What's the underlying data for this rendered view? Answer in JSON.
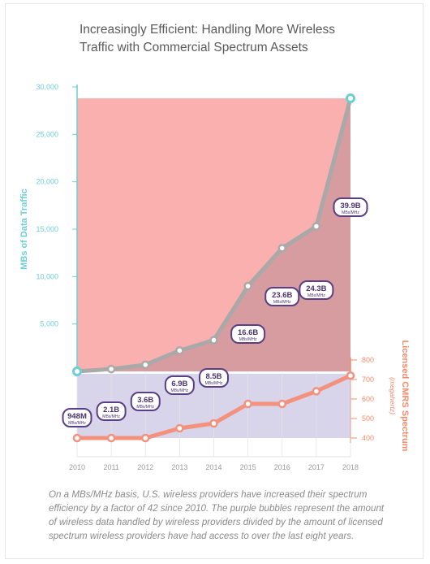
{
  "title": "Increasingly Efficient: Handling More Wireless Traffic with Commercial Spectrum Assets",
  "footnote": "On a MBs/MHz basis, U.S. wireless providers have increased their spectrum efficiency by a factor of 42 since 2010. The purple bubbles represent the amount of wireless data handled by wireless providers divided by the amount of licensed spectrum wireless providers have had access to over the last eight years.",
  "colors": {
    "left_axis": "#6ccfd6",
    "right_axis": "#f58b6a",
    "red_area": "#f9b0ae",
    "purple_area": "#d8d4ea",
    "traffic_line": "#a9a9a9",
    "spectrum_line": "#f4917c",
    "bubble_border": "#5a3f86",
    "bubble_text": "#4a3370"
  },
  "chart_data": {
    "type": "line",
    "categories": [
      "2010",
      "2011",
      "2012",
      "2013",
      "2014",
      "2015",
      "2016",
      "2017",
      "2018"
    ],
    "series": [
      {
        "name": "MBs of Data Traffic",
        "axis": "left",
        "values": [
          0,
          250,
          700,
          2200,
          3300,
          9000,
          13000,
          15300,
          28800
        ]
      },
      {
        "name": "Licensed CMRS Spectrum",
        "axis": "right",
        "values": [
          400,
          400,
          400,
          450,
          475,
          575,
          575,
          640,
          720
        ]
      }
    ],
    "left_axis": {
      "label": "MBs of Data Traffic",
      "ylim": [
        0,
        30000
      ],
      "ticks": [
        "30,000",
        "25,000",
        "20,000",
        "15,000",
        "10,000",
        "5,000"
      ],
      "tick_values": [
        30000,
        25000,
        20000,
        15000,
        10000,
        5000
      ]
    },
    "right_axis": {
      "label": "Licensed CMRS Spectrum",
      "unit": "(megahertz)",
      "ylim": [
        400,
        800
      ],
      "ticks": [
        "800",
        "700",
        "600",
        "500",
        "400"
      ],
      "tick_values": [
        800,
        700,
        600,
        500,
        400
      ]
    },
    "bubbles": [
      {
        "year": "2010",
        "value": "948M",
        "unit": "MBs/MHz"
      },
      {
        "year": "2011",
        "value": "2.1B",
        "unit": "MBs/MHz"
      },
      {
        "year": "2012",
        "value": "3.6B",
        "unit": "MBs/MHz"
      },
      {
        "year": "2013",
        "value": "6.9B",
        "unit": "MBs/MHz"
      },
      {
        "year": "2014",
        "value": "8.5B",
        "unit": "MBs/MHz"
      },
      {
        "year": "2015",
        "value": "16.6B",
        "unit": "MBs/MHz"
      },
      {
        "year": "2016",
        "value": "23.6B",
        "unit": "MBs/MHz"
      },
      {
        "year": "2017",
        "value": "24.3B",
        "unit": "MBs/MHz"
      },
      {
        "year": "2018",
        "value": "39.9B",
        "unit": "MBs/MHz"
      }
    ]
  }
}
